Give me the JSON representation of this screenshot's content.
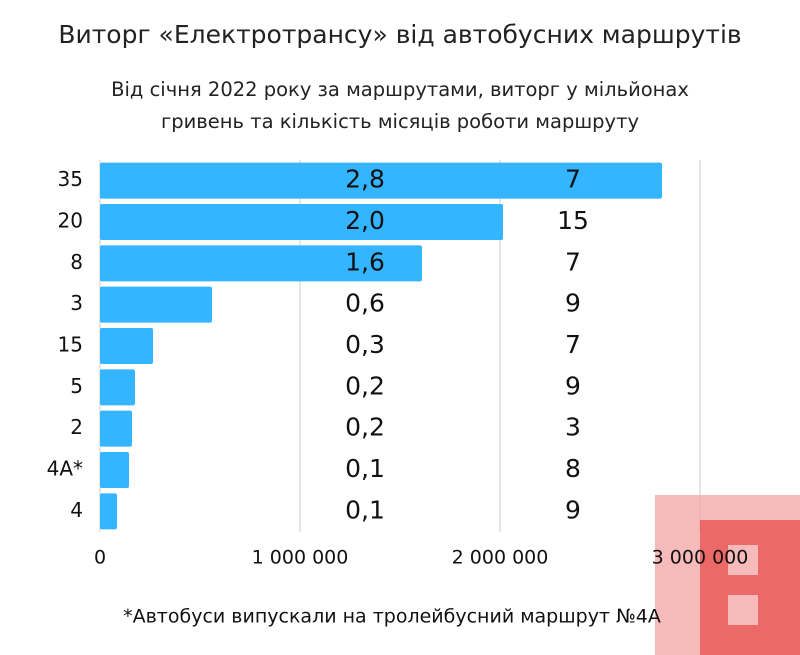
{
  "chart_data": {
    "type": "bar",
    "orientation": "horizontal",
    "title": "Виторг «Електротрансу» від автобусних маршрутів",
    "subtitle": "Від січня 2022 року за маршрутами, виторг у мільйонах гривень та кількість місяців роботи маршруту",
    "categories": [
      "35",
      "20",
      "8",
      "3",
      "15",
      "5",
      "2",
      "4A*",
      "4"
    ],
    "values": [
      2810000,
      2015000,
      1610000,
      560000,
      265000,
      175000,
      160000,
      145000,
      85000
    ],
    "value_labels": [
      "2,8",
      "2,0",
      "1,6",
      "0,6",
      "0,3",
      "0,2",
      "0,2",
      "0,1",
      "0,1"
    ],
    "months": [
      7,
      15,
      7,
      9,
      7,
      9,
      3,
      8,
      9
    ],
    "color": "#33b5ff",
    "xlim": [
      0,
      3500000
    ],
    "xticks": [
      0,
      {
        "value": 1000000,
        "label": "1 000 000"
      },
      {
        "value": 2000000,
        "label": "2 000 000"
      },
      {
        "value": 3000000,
        "label": "3 000 000"
      }
    ],
    "grid": true,
    "footnote": "*Автобуси випускали на тролейбусний маршрут №4А"
  }
}
